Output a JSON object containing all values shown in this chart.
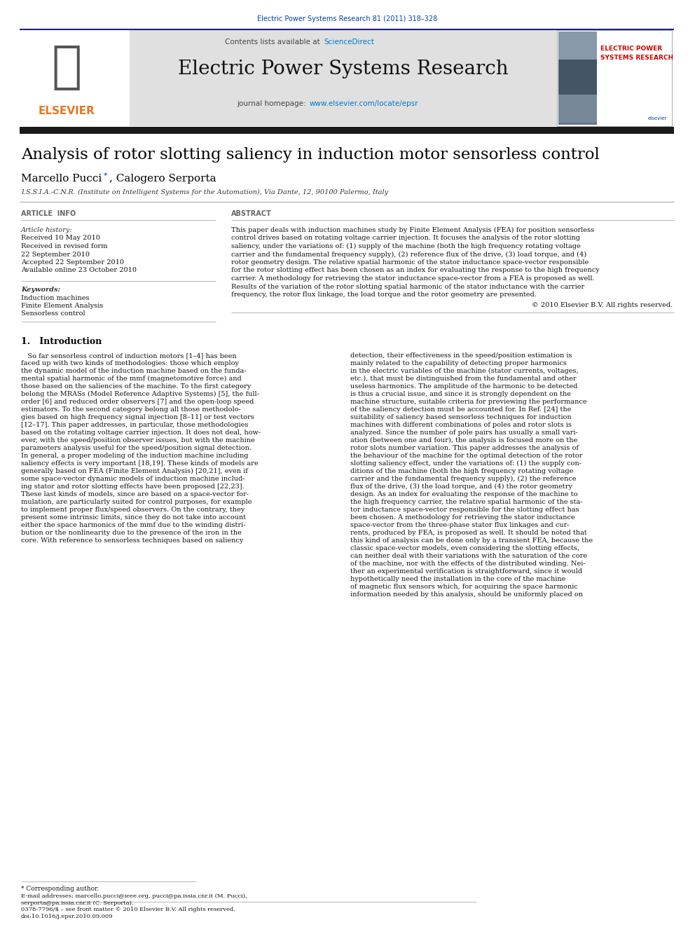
{
  "page_title": "Electric Power Systems Research 81 (2011) 318–328",
  "journal_name": "Electric Power Systems Research",
  "contents_line_plain": "Contents lists available at ",
  "contents_line_link": "ScienceDirect",
  "journal_url_plain": "journal homepage: ",
  "journal_url_link": "www.elsevier.com/locate/epsr",
  "paper_title": "Analysis of rotor slotting saliency in induction motor sensorless control",
  "author_main": "Marcello Pucci",
  "author_star": "*",
  "author_rest": ", Calogero Serporta",
  "affiliation": "I.S.S.I.A.-C.N.R. (Institute on Intelligent Systems for the Automation), Via Dante, 12, 90100 Palermo, Italy",
  "article_info_header": "ARTICLE  INFO",
  "abstract_header": "ABSTRACT",
  "article_history_label": "Article history:",
  "received": "Received 10 May 2010",
  "received_revised": "Received in revised form",
  "received_revised2": "22 September 2010",
  "accepted": "Accepted 22 September 2010",
  "available": "Available online 23 October 2010",
  "keywords_label": "Keywords:",
  "keyword1": "Induction machines",
  "keyword2": "Finite Element Analysis",
  "keyword3": "Sensorless control",
  "copyright": "© 2010 Elsevier B.V. All rights reserved.",
  "section1_title": "1.   Introduction",
  "elsevier_text": "ELSEVIER",
  "cover_line1": "ELECTRIC POWER",
  "cover_line2": "SYSTEMS RESEARCH",
  "footnote_star": "* Corresponding author.",
  "footnote_email": "E-mail addresses: marcello.pucci@ieee.org, pucci@pa.issia.cnr.it (M. Pucci),",
  "footnote_email2": "serporta@pa.issia.cnr.it (C. Serporta).",
  "footnote_issn": "0378-7796/$ – see front matter © 2010 Elsevier B.V. All rights reserved.",
  "footnote_doi": "doi:10.1016/j.epsr.2010.09.009",
  "bg_color": "#ffffff",
  "grey_bg": "#e0e0e0",
  "dark_bar_color": "#1a1a1a",
  "blue_link_color": "#0044aa",
  "sciencedirect_color": "#0077cc",
  "orange_color": "#e87722",
  "navy_line": "#1a237e",
  "abstract_lines": [
    "This paper deals with induction machines study by Finite Element Analysis (FEA) for position sensorless",
    "control drives based on rotating voltage carrier injection. It focuses the analysis of the rotor slotting",
    "saliency, under the variations of: (1) supply of the machine (both the high frequency rotating voltage",
    "carrier and the fundamental frequency supply), (2) reference flux of the drive, (3) load torque, and (4)",
    "rotor geometry design. The relative spatial harmonic of the stator inductance space-vector responsible",
    "for the rotor slotting effect has been chosen as an index for evaluating the response to the high frequency",
    "carrier. A methodology for retrieving the stator inductance space-vector from a FEA is proposed as well.",
    "Results of the variation of the rotor slotting spatial harmonic of the stator inductance with the carrier",
    "frequency, the rotor flux linkage, the load torque and the rotor geometry are presented."
  ],
  "intro_col1_lines": [
    "   So far sensorless control of induction motors [1–4] has been",
    "faced up with two kinds of methodologies: those which employ",
    "the dynamic model of the induction machine based on the funda-",
    "mental spatial harmonic of the mmf (magnetomotive force) and",
    "those based on the saliencies of the machine. To the first category",
    "belong the MRASs (Model Reference Adaptive Systems) [5], the full-",
    "order [6] and reduced order observers [7] and the open-loop speed",
    "estimators. To the second category belong all those methodolo-",
    "gies based on high frequency signal injection [8–11] or test vectors",
    "[12–17]. This paper addresses, in particular, those methodologies",
    "based on the rotating voltage carrier injection. It does not deal, how-",
    "ever, with the speed/position observer issues, but with the machine",
    "parameters analysis useful for the speed/position signal detection.",
    "In general, a proper modeling of the induction machine including",
    "saliency effects is very important [18,19]. These kinds of models are",
    "generally based on FEA (Finite Element Analysis) [20,21], even if",
    "some space-vector dynamic models of induction machine includ-",
    "ing stator and rotor slotting effects have been proposed [22,23].",
    "These last kinds of models, since are based on a space-vector for-",
    "mulation, are particularly suited for control purposes, for example",
    "to implement proper flux/speed observers. On the contrary, they",
    "present some intrinsic limits, since they do not take into account",
    "either the space harmonics of the mmf due to the winding distri-",
    "bution or the nonlinearity due to the presence of the iron in the",
    "core. With reference to sensorless techniques based on saliency"
  ],
  "intro_col2_lines": [
    "detection, their effectiveness in the speed/position estimation is",
    "mainly related to the capability of detecting proper harmonics",
    "in the electric variables of the machine (stator currents, voltages,",
    "etc.), that must be distinguished from the fundamental and other",
    "useless harmonics. The amplitude of the harmonic to be detected",
    "is thus a crucial issue, and since it is strongly dependent on the",
    "machine structure, suitable criteria for previewing the performance",
    "of the saliency detection must be accounted for. In Ref. [24] the",
    "suitability of saliency based sensorless techniques for induction",
    "machines with different combinations of poles and rotor slots is",
    "analyzed. Since the number of pole pairs has usually a small vari-",
    "ation (between one and four), the analysis is focused more on the",
    "rotor slots number variation. This paper addresses the analysis of",
    "the behaviour of the machine for the optimal detection of the rotor",
    "slotting saliency effect, under the variations of: (1) the supply con-",
    "ditions of the machine (both the high frequency rotating voltage",
    "carrier and the fundamental frequency supply), (2) the reference",
    "flux of the drive, (3) the load torque, and (4) the rotor geometry",
    "design. As an index for evaluating the response of the machine to",
    "the high frequency carrier, the relative spatial harmonic of the sta-",
    "tor inductance space-vector responsible for the slotting effect has",
    "been chosen. A methodology for retrieving the stator inductance",
    "space-vector from the three-phase stator flux linkages and cur-",
    "rents, produced by FEA, is proposed as well. It should be noted that",
    "this kind of analysis can be done only by a transient FEA, because the",
    "classic space-vector models, even considering the slotting effects,",
    "can neither deal with their variations with the saturation of the core",
    "of the machine, nor with the effects of the distributed winding. Nei-",
    "ther an experimental verification is straightforward, since it would",
    "hypothetically need the installation in the core of the machine",
    "of magnetic flux sensors which, for acquiring the space harmonic",
    "information needed by this analysis, should be uniformly placed on"
  ]
}
